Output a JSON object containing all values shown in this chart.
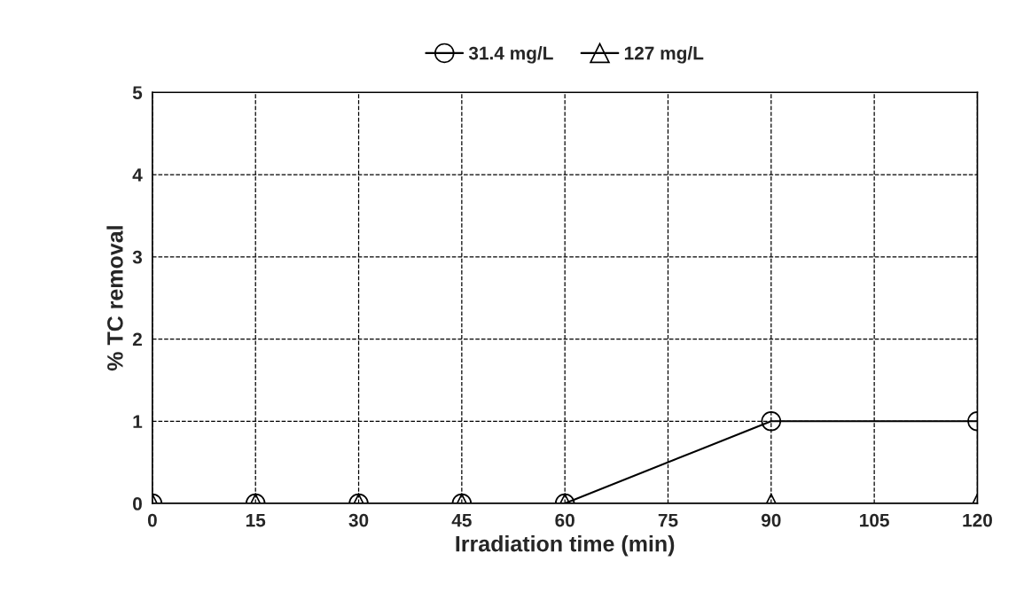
{
  "chart_data": {
    "type": "line",
    "xlabel": "Irradiation time (min)",
    "ylabel": "% TC removal",
    "x": [
      0,
      15,
      30,
      45,
      60,
      90,
      120
    ],
    "series": [
      {
        "name": "31.4 mg/L",
        "color": "#000000",
        "marker": "circle",
        "values": [
          0,
          0,
          0,
          0,
          0,
          1,
          1
        ]
      },
      {
        "name": "127 mg/L",
        "color": "#000000",
        "marker": "triangle",
        "values": [
          0,
          0,
          0,
          0,
          0,
          0,
          0
        ]
      }
    ],
    "xlim": [
      0,
      120
    ],
    "xticks": [
      0,
      15,
      30,
      45,
      60,
      75,
      90,
      105,
      120
    ],
    "ylim": [
      0,
      5
    ],
    "yticks": [
      0,
      1,
      2,
      3,
      4,
      5
    ],
    "grid": true,
    "legend": "top",
    "line_style": "solid"
  }
}
